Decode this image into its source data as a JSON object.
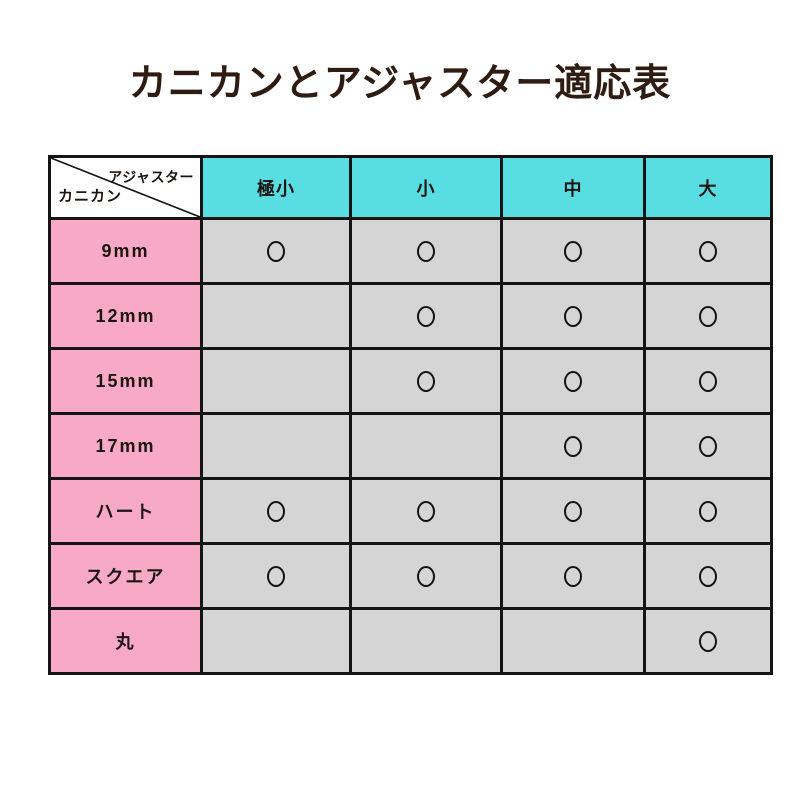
{
  "title": "カニカンとアジャスター適応表",
  "corner": {
    "top_label": "アジャスター",
    "bottom_label": "カニカン"
  },
  "mark_symbol": "○",
  "chart_data": {
    "type": "table",
    "title": "カニカンとアジャスター適応表",
    "column_header_title": "アジャスター",
    "row_header_title": "カニカン",
    "columns": [
      "極小",
      "小",
      "中",
      "大"
    ],
    "rows": [
      {
        "label": "9mm",
        "values": [
          "○",
          "○",
          "○",
          "○"
        ]
      },
      {
        "label": "12mm",
        "values": [
          "",
          "○",
          "○",
          "○"
        ]
      },
      {
        "label": "15mm",
        "values": [
          "",
          "○",
          "○",
          "○"
        ]
      },
      {
        "label": "17mm",
        "values": [
          "",
          "",
          "○",
          "○"
        ]
      },
      {
        "label": "ハート",
        "values": [
          "○",
          "○",
          "○",
          "○"
        ]
      },
      {
        "label": "スクエア",
        "values": [
          "○",
          "○",
          "○",
          "○"
        ]
      },
      {
        "label": "丸",
        "values": [
          "",
          "",
          "",
          "○"
        ]
      }
    ]
  },
  "colors": {
    "page_bg": "#FFFFFF",
    "column_header_bg": "#58DEE2",
    "row_header_bg": "#F8A9C6",
    "cell_bg": "#D5D5D5",
    "border": "#141414",
    "title_text": "#2E1C12",
    "mark": "#121212"
  }
}
